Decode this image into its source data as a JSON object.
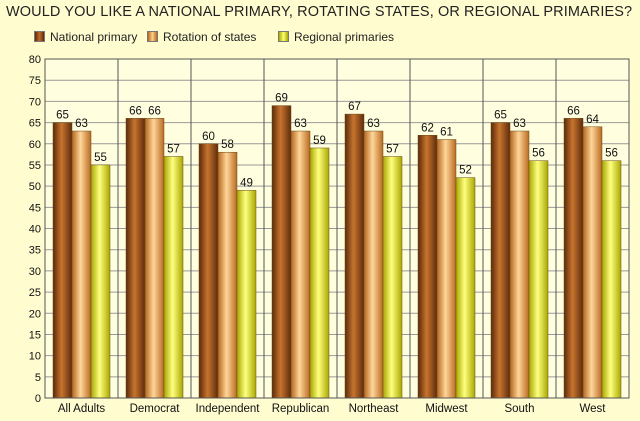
{
  "chart_data": {
    "type": "bar",
    "title": "WOULD YOU LIKE A NATIONAL PRIMARY, ROTATING STATES, OR REGIONAL PRIMARIES?",
    "xlabel": "",
    "ylabel": "",
    "ylim": [
      0,
      80
    ],
    "yticks": [
      0,
      5,
      10,
      15,
      20,
      25,
      30,
      35,
      40,
      45,
      50,
      55,
      60,
      65,
      70,
      75,
      80
    ],
    "grid": true,
    "legend_position": "top-left",
    "categories": [
      "All Adults",
      "Democrat",
      "Independent",
      "Republican",
      "Northeast",
      "Midwest",
      "South",
      "West"
    ],
    "series": [
      {
        "name": "National primary",
        "color": "#8B4513",
        "values": [
          65,
          66,
          60,
          69,
          67,
          62,
          65,
          66
        ]
      },
      {
        "name": "Rotation of states",
        "color": "#E8A150",
        "values": [
          63,
          66,
          58,
          63,
          63,
          61,
          63,
          64
        ]
      },
      {
        "name": "Regional primaries",
        "color": "#E6E619",
        "values": [
          55,
          57,
          49,
          59,
          57,
          52,
          56,
          56
        ]
      }
    ]
  },
  "colors": {
    "background": "#FFFDD0",
    "plot_background": "#FFFFE0",
    "grid": "#999999"
  }
}
